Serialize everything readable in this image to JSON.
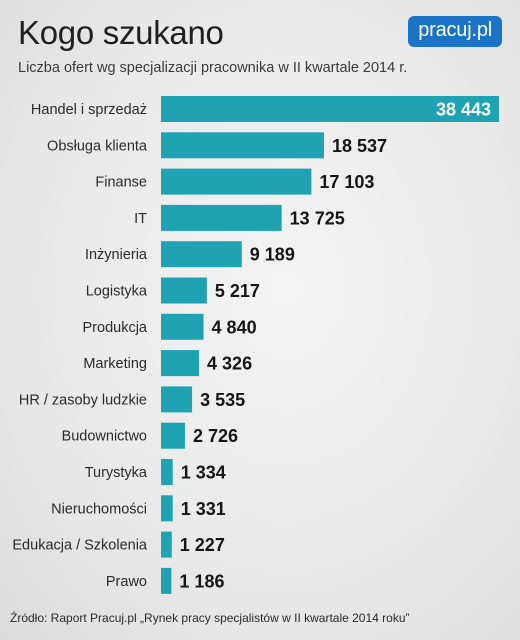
{
  "header": {
    "title": "Kogo szukano",
    "subtitle": "Liczba ofert wg specjalizacji pracownika w II kwartale 2014 r.",
    "logo_text": "pracuj.pl"
  },
  "footer": {
    "source": "Źródło: Raport Pracuj.pl „Rynek pracy specjalistów w II kwartale 2014 roku”"
  },
  "colors": {
    "bar": "#1fa3b3",
    "logo_bg": "#1b73c6"
  },
  "chart_data": {
    "type": "bar",
    "orientation": "horizontal",
    "categories": [
      "Handel i sprzedaż",
      "Obsługa klienta",
      "Finanse",
      "IT",
      "Inżynieria",
      "Logistyka",
      "Produkcja",
      "Marketing",
      "HR / zasoby ludzkie",
      "Budownictwo",
      "Turystyka",
      "Nieruchomości",
      "Edukacja / Szkolenia",
      "Prawo"
    ],
    "values": [
      38443,
      18537,
      17103,
      13725,
      9189,
      5217,
      4840,
      4326,
      3535,
      2726,
      1334,
      1331,
      1227,
      1186
    ],
    "value_labels": [
      "38 443",
      "18 537",
      "17 103",
      "13 725",
      "9 189",
      "5 217",
      "4 840",
      "4 326",
      "3 535",
      "2 726",
      "1 334",
      "1 331",
      "1 227",
      "1 186"
    ],
    "title": "Kogo szukano",
    "xlabel": "",
    "ylabel": "",
    "grid": false,
    "legend": "none"
  }
}
